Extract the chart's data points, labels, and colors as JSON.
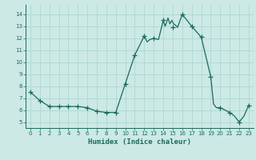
{
  "x_line": [
    0,
    1,
    2,
    3,
    4,
    5,
    6,
    7,
    8,
    9,
    10,
    11,
    11.5,
    12,
    12.3,
    12.6,
    13,
    13.5,
    14,
    14.2,
    14.5,
    14.7,
    14.9,
    15.1,
    15.3,
    15.5,
    16,
    17,
    18,
    19,
    19.3,
    19.6,
    20,
    21,
    21.5,
    22,
    22.5,
    23
  ],
  "y_line": [
    7.5,
    6.8,
    6.3,
    6.3,
    6.3,
    6.3,
    6.2,
    5.9,
    5.8,
    5.8,
    8.2,
    10.6,
    11.4,
    12.2,
    11.7,
    11.9,
    12.0,
    11.9,
    13.5,
    13.0,
    13.7,
    13.2,
    13.5,
    13.2,
    13.1,
    12.9,
    14.0,
    13.0,
    12.1,
    8.8,
    6.5,
    6.2,
    6.2,
    5.8,
    5.5,
    5.0,
    5.5,
    6.4
  ],
  "x_markers": [
    0,
    1,
    2,
    3,
    4,
    5,
    6,
    7,
    8,
    9,
    10,
    11,
    12,
    13,
    14,
    15,
    16,
    17,
    18,
    19,
    20,
    21,
    22,
    23
  ],
  "y_markers": [
    7.5,
    6.8,
    6.3,
    6.3,
    6.3,
    6.3,
    6.2,
    5.9,
    5.8,
    5.8,
    8.2,
    10.6,
    12.2,
    12.0,
    13.5,
    12.9,
    14.0,
    13.0,
    12.1,
    8.8,
    6.2,
    5.8,
    5.0,
    6.4
  ],
  "line_color": "#1a6b5a",
  "marker_color": "#1a6b5a",
  "bg_color": "#cce9e5",
  "grid_color": "#aad4ce",
  "axis_color": "#1a6b5a",
  "xlabel": "Humidex (Indice chaleur)",
  "ylim": [
    4.5,
    14.8
  ],
  "xlim": [
    -0.5,
    23.5
  ],
  "yticks": [
    5,
    6,
    7,
    8,
    9,
    10,
    11,
    12,
    13,
    14
  ],
  "xticks": [
    0,
    1,
    2,
    3,
    4,
    5,
    6,
    7,
    8,
    9,
    10,
    11,
    12,
    13,
    14,
    15,
    16,
    17,
    18,
    19,
    20,
    21,
    22,
    23
  ]
}
